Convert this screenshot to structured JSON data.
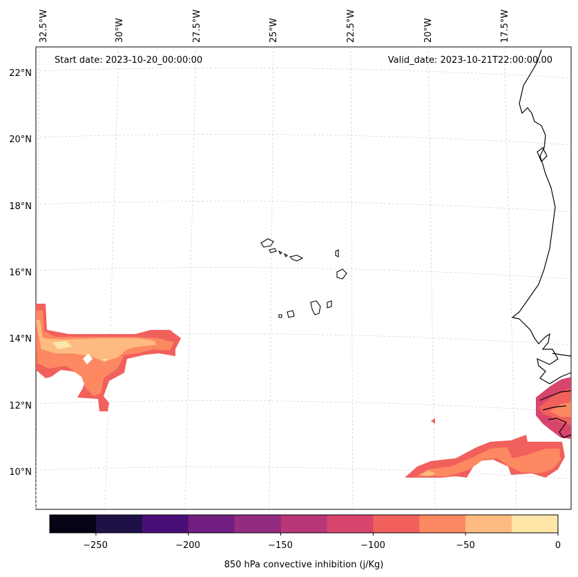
{
  "header": {
    "start_date": "Start date: 2023-10-20_00:00:00",
    "valid_date": "Valid_date: 2023-10-21T22:00:00.00"
  },
  "map": {
    "lon_labels": [
      "32.5°W",
      "30°W",
      "27.5°W",
      "25°W",
      "22.5°W",
      "20°W",
      "17.5°W"
    ],
    "lat_labels": [
      "22°N",
      "20°N",
      "18°N",
      "16°N",
      "14°N",
      "12°N",
      "10°N"
    ],
    "gridlines": "dashed light gray",
    "colors": {
      "coastline": "#000000",
      "ocean": "#ffffff"
    }
  },
  "colorbar": {
    "label": "850 hPa convective inhibition (j/Kg)",
    "ticks": [
      "−250",
      "−200",
      "−150",
      "−100",
      "−50",
      "0"
    ],
    "bins": [
      -275,
      -250,
      -225,
      -200,
      -175,
      -150,
      -125,
      -100,
      -75,
      -50,
      -25,
      0
    ],
    "colors": [
      "#050416",
      "#1e1146",
      "#4a0f77",
      "#721f81",
      "#932b80",
      "#b73779",
      "#d8456c",
      "#f1605d",
      "#fc8961",
      "#febb81",
      "#fde6a7"
    ]
  }
}
